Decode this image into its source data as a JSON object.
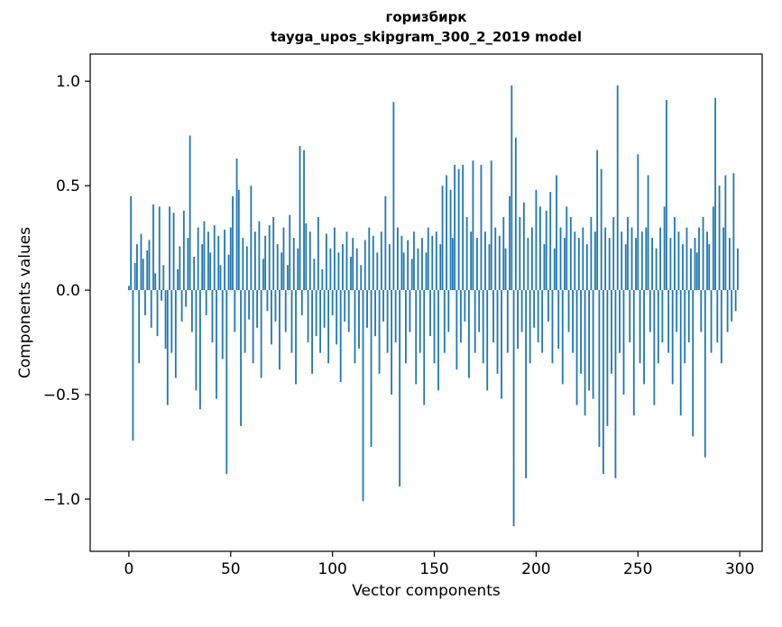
{
  "chart_data": {
    "type": "bar",
    "title": "горизбирк",
    "subtitle": "tayga_upos_skipgram_300_2_2019 model",
    "xlabel": "Vector components",
    "ylabel": "Components values",
    "bar_color": "#1f77b4",
    "axis_color": "#000000",
    "background_color": "#ffffff",
    "grid": false,
    "legend": false,
    "n_components": 300,
    "x_start": 0,
    "xlim": [
      -19,
      311
    ],
    "ylim": [
      -1.25,
      1.13
    ],
    "x_ticks": [
      {
        "value": 0,
        "label": "0"
      },
      {
        "value": 50,
        "label": "50"
      },
      {
        "value": 100,
        "label": "100"
      },
      {
        "value": 150,
        "label": "150"
      },
      {
        "value": 200,
        "label": "200"
      },
      {
        "value": 250,
        "label": "250"
      },
      {
        "value": 300,
        "label": "300"
      }
    ],
    "y_ticks": [
      {
        "value": 1.0,
        "label": "1.0"
      },
      {
        "value": 0.5,
        "label": "0.5"
      },
      {
        "value": 0.0,
        "label": "0.0"
      },
      {
        "value": -0.5,
        "label": "−0.5"
      },
      {
        "value": -1.0,
        "label": "−1.0"
      }
    ],
    "values": [
      0.02,
      0.45,
      -0.72,
      0.13,
      0.22,
      -0.35,
      0.27,
      0.15,
      -0.12,
      0.19,
      0.24,
      -0.18,
      0.41,
      0.08,
      -0.22,
      0.4,
      -0.05,
      0.12,
      -0.28,
      -0.55,
      0.4,
      -0.3,
      0.37,
      -0.42,
      0.1,
      0.21,
      -0.15,
      0.38,
      -0.08,
      0.25,
      0.74,
      -0.2,
      0.16,
      -0.48,
      0.3,
      -0.57,
      0.22,
      0.33,
      -0.12,
      0.28,
      0.18,
      -0.25,
      0.31,
      -0.52,
      0.26,
      0.12,
      -0.33,
      0.29,
      -0.88,
      0.17,
      0.3,
      0.45,
      -0.2,
      0.63,
      0.48,
      -0.65,
      0.25,
      -0.3,
      0.21,
      -0.14,
      0.5,
      -0.35,
      0.28,
      -0.18,
      0.33,
      -0.42,
      0.15,
      0.26,
      -0.1,
      0.31,
      -0.26,
      0.35,
      -0.15,
      0.22,
      -0.38,
      0.18,
      0.3,
      -0.2,
      0.12,
      0.36,
      -0.3,
      0.25,
      -0.45,
      0.2,
      0.69,
      -0.12,
      0.67,
      0.32,
      -0.25,
      0.28,
      -0.4,
      0.15,
      -0.22,
      0.35,
      -0.3,
      0.1,
      -0.18,
      0.27,
      -0.35,
      0.2,
      -0.12,
      0.3,
      -0.26,
      0.18,
      -0.44,
      0.22,
      -0.15,
      0.28,
      -0.2,
      0.16,
      0.25,
      -0.35,
      0.2,
      -0.28,
      0.12,
      -1.01,
      0.24,
      -0.18,
      0.3,
      -0.75,
      0.26,
      -0.22,
      0.18,
      -0.4,
      0.28,
      -0.15,
      0.45,
      -0.3,
      0.22,
      -0.5,
      0.9,
      -0.25,
      0.3,
      -0.94,
      0.26,
      0.18,
      -0.35,
      0.24,
      -0.2,
      0.15,
      0.28,
      -0.45,
      0.2,
      -0.3,
      0.25,
      -0.55,
      0.18,
      0.3,
      -0.22,
      0.26,
      -0.35,
      0.28,
      -0.48,
      0.22,
      0.5,
      -0.3,
      0.55,
      -0.2,
      0.48,
      0.25,
      0.6,
      -0.38,
      0.58,
      -0.25,
      0.6,
      -0.15,
      0.35,
      -0.42,
      0.28,
      0.62,
      -0.3,
      0.25,
      -0.2,
      0.6,
      -0.35,
      0.28,
      -0.48,
      0.22,
      0.62,
      -0.25,
      0.3,
      -0.4,
      0.26,
      -0.52,
      0.35,
      0.2,
      -0.3,
      0.45,
      0.98,
      -1.13,
      0.73,
      -0.28,
      0.35,
      -0.2,
      0.42,
      -0.9,
      0.25,
      -0.35,
      0.3,
      -0.18,
      0.48,
      -0.25,
      0.4,
      -0.3,
      0.22,
      0.38,
      -0.15,
      0.47,
      -0.35,
      0.2,
      0.55,
      -0.28,
      0.3,
      -0.45,
      0.25,
      0.4,
      -0.2,
      0.35,
      -0.3,
      0.28,
      -0.55,
      0.25,
      -0.4,
      0.3,
      -0.6,
      0.22,
      -0.48,
      0.35,
      -0.52,
      0.28,
      0.67,
      -0.75,
      0.58,
      -0.88,
      0.3,
      -0.65,
      0.25,
      -0.4,
      0.35,
      -0.9,
      0.98,
      -0.3,
      0.28,
      -0.5,
      0.22,
      0.35,
      -0.25,
      0.3,
      -0.6,
      0.25,
      0.65,
      -0.35,
      0.28,
      -0.45,
      0.3,
      0.55,
      -0.2,
      0.25,
      -0.55,
      0.2,
      -0.35,
      0.3,
      -0.25,
      0.4,
      0.91,
      -0.3,
      0.25,
      -0.45,
      0.35,
      -0.2,
      0.28,
      -0.6,
      0.22,
      -0.35,
      0.3,
      -0.25,
      0.2,
      -0.7,
      0.25,
      0.18,
      0.3,
      -0.2,
      0.35,
      -0.8,
      0.28,
      0.22,
      -0.3,
      0.4,
      0.92,
      -0.25,
      0.5,
      -0.35,
      0.3,
      0.55,
      -0.2,
      0.25,
      -0.15,
      0.56,
      -0.1,
      0.2
    ]
  }
}
